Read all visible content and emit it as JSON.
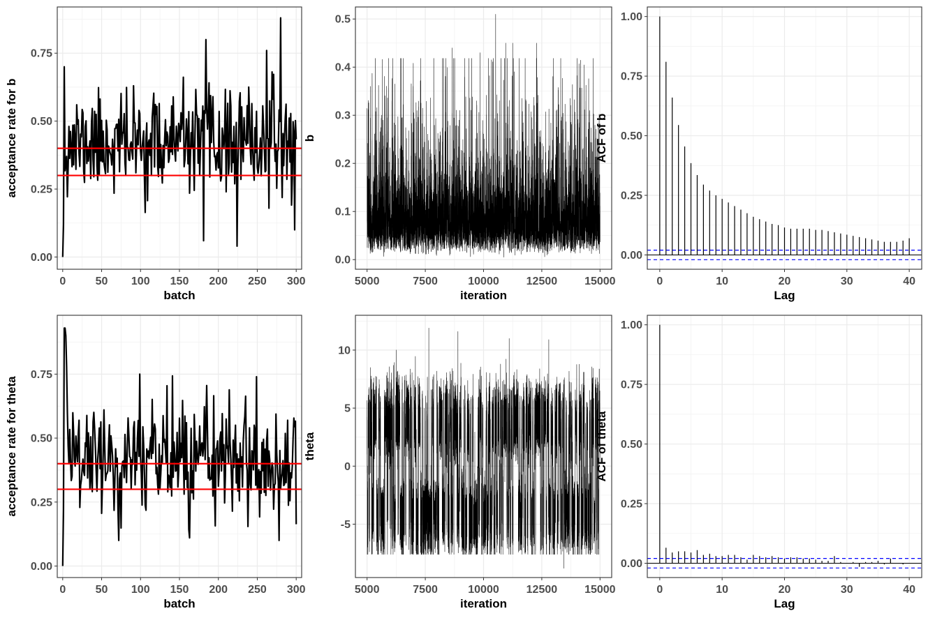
{
  "chart_data": [
    {
      "id": "accept-b",
      "type": "line",
      "xlabel": "batch",
      "ylabel": "acceptance rate for b",
      "xlim": [
        -7,
        307
      ],
      "ylim": [
        -0.045,
        0.92
      ],
      "xticks": [
        0,
        50,
        100,
        150,
        200,
        250,
        300
      ],
      "yticks": [
        0.0,
        0.25,
        0.5,
        0.75
      ],
      "ytick_labels": [
        "0.00",
        "0.25",
        "0.50",
        "0.75"
      ],
      "hlines": [
        0.3,
        0.4
      ],
      "hline_color": "#ff0000",
      "series": [
        {
          "name": "acceptance rate for b",
          "color": "#000000",
          "approx_n": 301,
          "x_range": [
            0,
            300
          ],
          "start": [
            0.0,
            0.12,
            0.7
          ],
          "mean": 0.42,
          "spread": 0.09,
          "min": 0.04,
          "max": 0.88,
          "peaks": [
            {
              "x": 184,
              "y": 0.8
            },
            {
              "x": 262,
              "y": 0.76
            },
            {
              "x": 280,
              "y": 0.88
            }
          ],
          "troughs": [
            {
              "x": 181,
              "y": 0.06
            },
            {
              "x": 224,
              "y": 0.04
            },
            {
              "x": 298,
              "y": 0.1
            }
          ]
        }
      ]
    },
    {
      "id": "trace-b",
      "type": "line",
      "xlabel": "iteration",
      "ylabel": "b",
      "xlim": [
        4500,
        15500
      ],
      "ylim": [
        -0.02,
        0.525
      ],
      "xticks": [
        5000,
        7500,
        10000,
        12500,
        15000
      ],
      "yticks": [
        0.0,
        0.1,
        0.2,
        0.3,
        0.4,
        0.5
      ],
      "ytick_labels": [
        "0.0",
        "0.1",
        "0.2",
        "0.3",
        "0.4",
        "0.5"
      ],
      "series": [
        {
          "name": "b",
          "color": "#000000",
          "approx_n": 10000,
          "x_range": [
            5000,
            15000
          ],
          "mean": 0.08,
          "min": 0.0,
          "max": 0.51,
          "peaks": [
            {
              "x": 8650,
              "y": 0.44
            },
            {
              "x": 9850,
              "y": 0.43
            },
            {
              "x": 10520,
              "y": 0.51
            },
            {
              "x": 10950,
              "y": 0.45
            },
            {
              "x": 11250,
              "y": 0.45
            },
            {
              "x": 12280,
              "y": 0.45
            }
          ]
        }
      ]
    },
    {
      "id": "acf-b",
      "type": "bar",
      "xlabel": "Lag",
      "ylabel": "ACF of b",
      "xlim": [
        -2,
        42
      ],
      "ylim": [
        -0.06,
        1.04
      ],
      "xticks": [
        0,
        10,
        20,
        30,
        40
      ],
      "yticks": [
        0.0,
        0.25,
        0.5,
        0.75,
        1.0
      ],
      "ytick_labels": [
        "0.00",
        "0.25",
        "0.50",
        "0.75",
        "1.00"
      ],
      "ci": 0.02,
      "ci_color": "#0000ff",
      "lags": [
        0,
        1,
        2,
        3,
        4,
        5,
        6,
        7,
        8,
        9,
        10,
        11,
        12,
        13,
        14,
        15,
        16,
        17,
        18,
        19,
        20,
        21,
        22,
        23,
        24,
        25,
        26,
        27,
        28,
        29,
        30,
        31,
        32,
        33,
        34,
        35,
        36,
        37,
        38,
        39,
        40
      ],
      "values": [
        1.0,
        0.81,
        0.66,
        0.545,
        0.455,
        0.385,
        0.335,
        0.295,
        0.27,
        0.25,
        0.235,
        0.22,
        0.205,
        0.19,
        0.175,
        0.16,
        0.15,
        0.14,
        0.13,
        0.125,
        0.115,
        0.11,
        0.11,
        0.11,
        0.11,
        0.105,
        0.105,
        0.1,
        0.095,
        0.09,
        0.085,
        0.08,
        0.075,
        0.07,
        0.065,
        0.06,
        0.055,
        0.055,
        0.055,
        0.06,
        0.07
      ]
    },
    {
      "id": "accept-theta",
      "type": "line",
      "xlabel": "batch",
      "ylabel": "acceptance rate for theta",
      "xlim": [
        -7,
        307
      ],
      "ylim": [
        -0.045,
        0.98
      ],
      "xticks": [
        0,
        50,
        100,
        150,
        200,
        250,
        300
      ],
      "yticks": [
        0.0,
        0.25,
        0.5,
        0.75
      ],
      "ytick_labels": [
        "0.00",
        "0.25",
        "0.50",
        "0.75"
      ],
      "hlines": [
        0.3,
        0.4
      ],
      "hline_color": "#ff0000",
      "series": [
        {
          "name": "acceptance rate for theta",
          "color": "#000000",
          "approx_n": 301,
          "x_range": [
            0,
            300
          ],
          "start": [
            0.0,
            0.22,
            0.93,
            0.93,
            0.9,
            0.78,
            0.6,
            0.47,
            0.4
          ],
          "mean": 0.42,
          "spread": 0.11,
          "min": 0.1,
          "max": 0.93,
          "peaks": [
            {
              "x": 99,
              "y": 0.75
            },
            {
              "x": 163,
              "y": 0.76
            },
            {
              "x": 249,
              "y": 0.74
            }
          ],
          "troughs": [
            {
              "x": 163,
              "y": 0.11
            },
            {
              "x": 278,
              "y": 0.1
            }
          ]
        }
      ]
    },
    {
      "id": "trace-theta",
      "type": "line",
      "xlabel": "iteration",
      "ylabel": "theta",
      "xlim": [
        4500,
        15500
      ],
      "ylim": [
        -9.6,
        13.0
      ],
      "xticks": [
        5000,
        7500,
        10000,
        12500,
        15000
      ],
      "yticks": [
        -5,
        0,
        5,
        10
      ],
      "ytick_labels": [
        "-5",
        "0",
        "5",
        "10"
      ],
      "series": [
        {
          "name": "theta",
          "color": "#000000",
          "approx_n": 10000,
          "x_range": [
            5000,
            15000
          ],
          "modes": [
            -4.5,
            4.0
          ],
          "min": -8.8,
          "max": 12.0,
          "peaks": [
            {
              "x": 7650,
              "y": 11.9
            },
            {
              "x": 8900,
              "y": 11.6
            },
            {
              "x": 11100,
              "y": 11.0
            },
            {
              "x": 12800,
              "y": 10.9
            }
          ],
          "troughs": [
            {
              "x": 13450,
              "y": -8.8
            },
            {
              "x": 9500,
              "y": -7.4
            }
          ]
        }
      ]
    },
    {
      "id": "acf-theta",
      "type": "bar",
      "xlabel": "Lag",
      "ylabel": "ACF of theta",
      "xlim": [
        -2,
        42
      ],
      "ylim": [
        -0.06,
        1.04
      ],
      "xticks": [
        0,
        10,
        20,
        30,
        40
      ],
      "yticks": [
        0.0,
        0.25,
        0.5,
        0.75,
        1.0
      ],
      "ytick_labels": [
        "0.00",
        "0.25",
        "0.50",
        "0.75",
        "1.00"
      ],
      "ci": 0.02,
      "ci_color": "#0000ff",
      "lags": [
        0,
        1,
        2,
        3,
        4,
        5,
        6,
        7,
        8,
        9,
        10,
        11,
        12,
        13,
        14,
        15,
        16,
        17,
        18,
        19,
        20,
        21,
        22,
        23,
        24,
        25,
        26,
        27,
        28,
        29,
        30,
        31,
        32,
        33,
        34,
        35,
        36,
        37,
        38,
        39,
        40
      ],
      "values": [
        1.0,
        0.065,
        0.045,
        0.05,
        0.05,
        0.045,
        0.055,
        0.035,
        0.04,
        0.03,
        0.03,
        0.035,
        0.035,
        0.025,
        0.015,
        0.035,
        0.03,
        0.025,
        0.03,
        0.025,
        0.02,
        0.025,
        0.025,
        0.02,
        0.02,
        0.015,
        0.01,
        0.01,
        0.03,
        0.005,
        0.0,
        0.005,
        -0.015,
        0.005,
        0.005,
        0.01,
        -0.005,
        0.02,
        0.0,
        -0.005,
        0.0
      ]
    }
  ]
}
